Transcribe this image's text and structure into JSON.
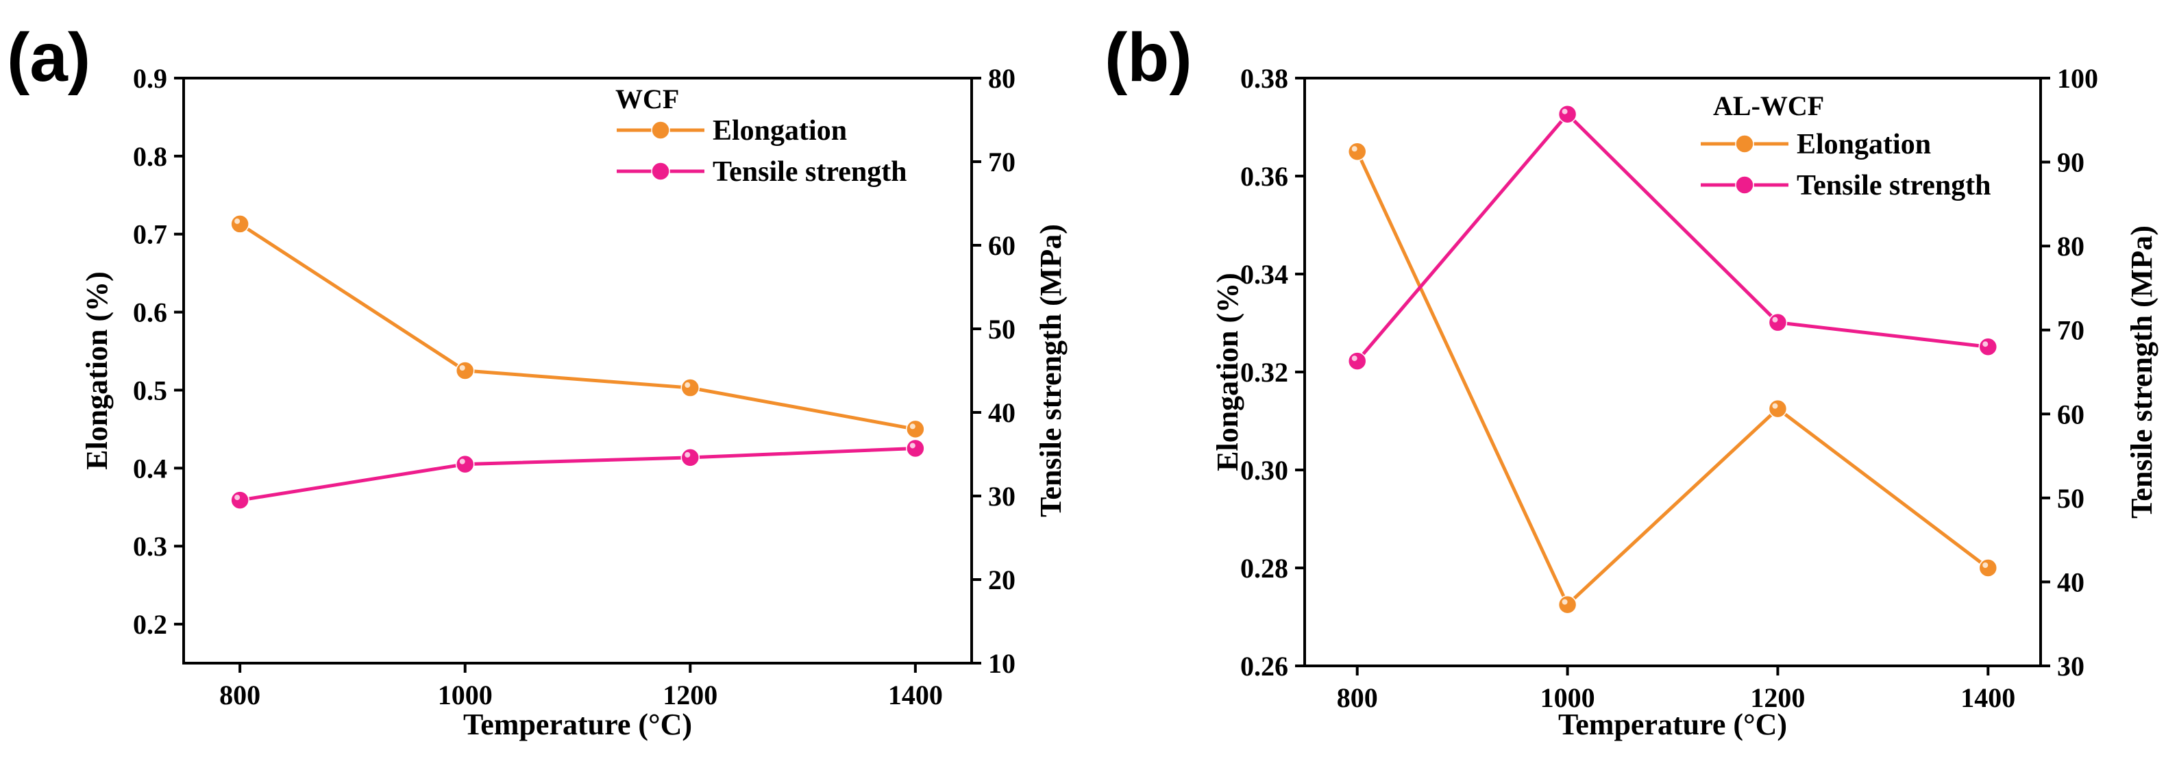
{
  "colors": {
    "elongation": "#f28e2b",
    "tensile": "#ee1c8c",
    "axis": "#000000"
  },
  "chart_data": [
    {
      "type": "line",
      "panel_label": "(a)",
      "legend_title": "WCF",
      "xlabel": "Temperature (°C)",
      "ylabel_left": "Elongation (%)",
      "ylabel_right": "Tensile strength (MPa)",
      "x": [
        800,
        1000,
        1200,
        1400
      ],
      "xticks": [
        800,
        1000,
        1200,
        1400
      ],
      "xlim": [
        750,
        1450
      ],
      "ylim_left": [
        0.15,
        0.9
      ],
      "yticks_left": [
        0.2,
        0.3,
        0.4,
        0.5,
        0.6,
        0.7,
        0.8,
        0.9
      ],
      "ylim_right": [
        10,
        80
      ],
      "yticks_right": [
        10,
        20,
        30,
        40,
        50,
        60,
        70,
        80
      ],
      "series": [
        {
          "name": "Elongation",
          "axis": "left",
          "color": "#f28e2b",
          "values": [
            0.713,
            0.525,
            0.503,
            0.45
          ]
        },
        {
          "name": "Tensile strength",
          "axis": "right",
          "color": "#ee1c8c",
          "values": [
            29.5,
            33.8,
            34.6,
            35.7
          ]
        }
      ]
    },
    {
      "type": "line",
      "panel_label": "(b)",
      "legend_title": "AL-WCF",
      "xlabel": "Temperature (°C)",
      "ylabel_left": "Elongation (%)",
      "ylabel_right": "Tensile strength (MPa)",
      "x": [
        800,
        1000,
        1200,
        1400
      ],
      "xticks": [
        800,
        1000,
        1200,
        1400
      ],
      "xlim": [
        750,
        1450
      ],
      "ylim_left": [
        0.26,
        0.38
      ],
      "yticks_left": [
        0.26,
        0.28,
        0.3,
        0.32,
        0.34,
        0.36,
        0.38
      ],
      "ylim_right": [
        30,
        100
      ],
      "yticks_right": [
        30,
        40,
        50,
        60,
        70,
        80,
        90,
        100
      ],
      "series": [
        {
          "name": "Elongation",
          "axis": "left",
          "color": "#f28e2b",
          "values": [
            0.365,
            0.2725,
            0.3125,
            0.28
          ]
        },
        {
          "name": "Tensile strength",
          "axis": "right",
          "color": "#ee1c8c",
          "values": [
            66.3,
            95.7,
            70.9,
            68.0
          ]
        }
      ]
    }
  ]
}
